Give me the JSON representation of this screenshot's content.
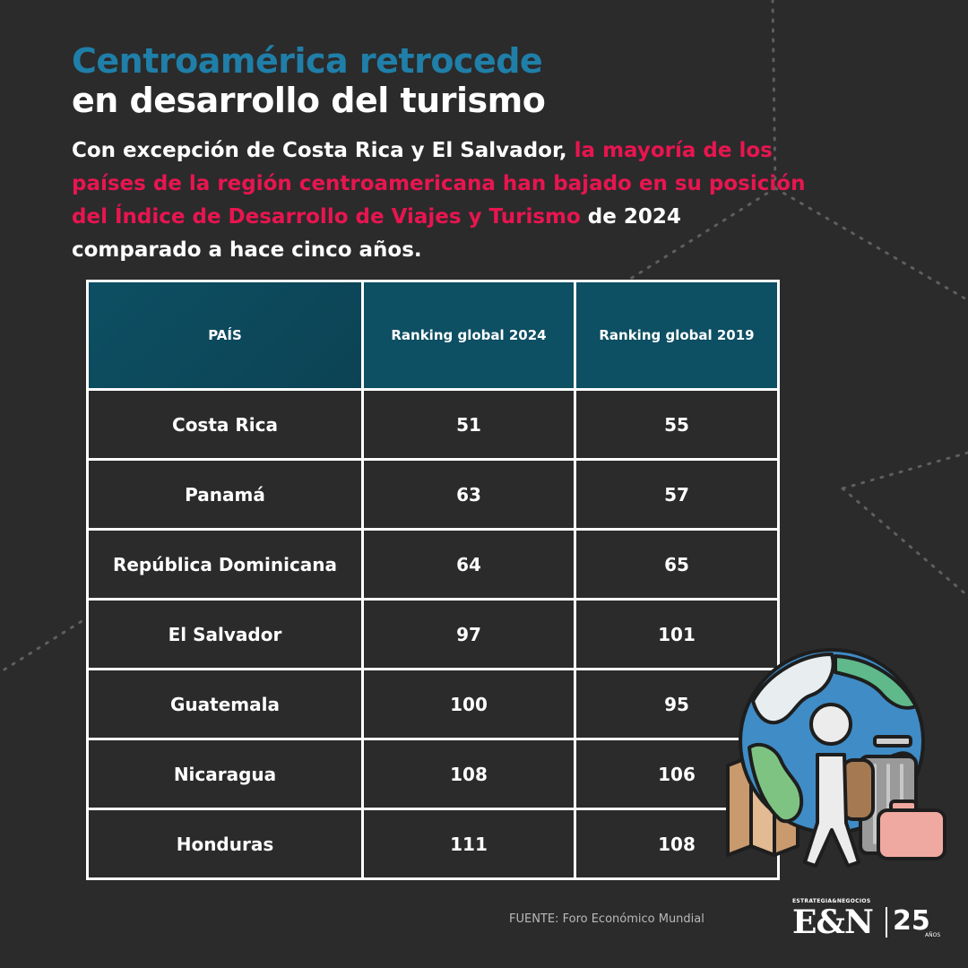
{
  "title": {
    "line1": "Centroamérica retrocede",
    "line2": "en desarrollo del turismo"
  },
  "intro": {
    "part1": "Con excepción de Costa Rica y El Salvador, ",
    "highlight": "la mayoría de los países de la región centroamericana han bajado en su posición del Índice de Desarrollo de Viajes y Turismo",
    "part2": " de 2024 comparado a hace cinco años."
  },
  "colors": {
    "background": "#2b2b2c",
    "title_accent": "#1f7fa8",
    "highlight": "#e8154f",
    "header_fill": "#0d4f63"
  },
  "chart_data": {
    "type": "table",
    "title": "Centroamérica retrocede en desarrollo del turismo",
    "columns": [
      "PAÍS",
      "Ranking global 2024",
      "Ranking global 2019"
    ],
    "rows": [
      [
        "Costa Rica",
        "51",
        "55"
      ],
      [
        "Panamá",
        "63",
        "57"
      ],
      [
        "República Dominicana",
        "64",
        "65"
      ],
      [
        "El Salvador",
        "97",
        "101"
      ],
      [
        "Guatemala",
        "100",
        "95"
      ],
      [
        "Nicaragua",
        "108",
        "106"
      ],
      [
        "Honduras",
        "111",
        "108"
      ]
    ]
  },
  "footer": {
    "source": "FUENTE: Foro Económico Mundial",
    "logo_small": "ESTRATEGIA&NEGOCIOS",
    "logo_main": "E&N",
    "logo_number": "25",
    "logo_anos": "AÑOS"
  },
  "illustration": {
    "icon": "globe-traveler-luggage-icon"
  }
}
